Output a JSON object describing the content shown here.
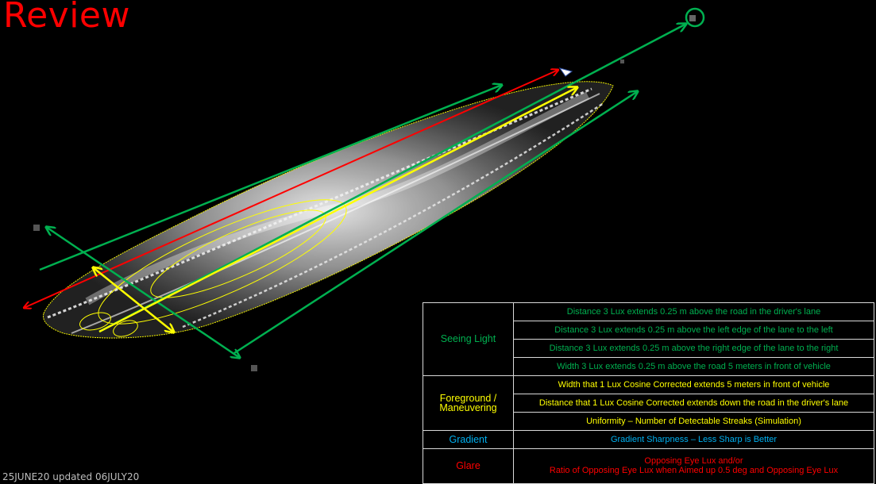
{
  "title": "Review",
  "footnote": "25JUNE20 updated 06JULY20",
  "colors": {
    "seeing_light": "#00b050",
    "foreground": "#ffff00",
    "gradient": "#00b0f0",
    "glare": "#ff0000"
  },
  "legend": {
    "seeing_light": {
      "label": "Seeing Light",
      "items": [
        "Distance 3 Lux extends 0.25 m above the road in the driver's lane",
        "Distance 3 Lux extends 0.25 m above the left edge of the lane to the left",
        "Distance 3 Lux extends 0.25 m above the right edge of the lane to the right",
        "Width 3 Lux extends 0.25 m above the road 5 meters in front of vehicle"
      ]
    },
    "foreground": {
      "label": "Foreground / Maneuvering",
      "items": [
        "Width that 1 Lux Cosine Corrected extends 5 meters in front of vehicle",
        "Distance that 1 Lux Cosine Corrected extends down the road in the driver's lane",
        "Uniformity – Number of Detectable Streaks (Simulation)"
      ]
    },
    "gradient": {
      "label": "Gradient",
      "items": [
        "Gradient Sharpness – Less Sharp is Better"
      ]
    },
    "glare": {
      "label": "Glare",
      "line1": "Opposing Eye Lux and/or",
      "line2": "Ratio of Opposing Eye Lux when Aimed up 0.5 deg and Opposing Eye Lux"
    }
  }
}
